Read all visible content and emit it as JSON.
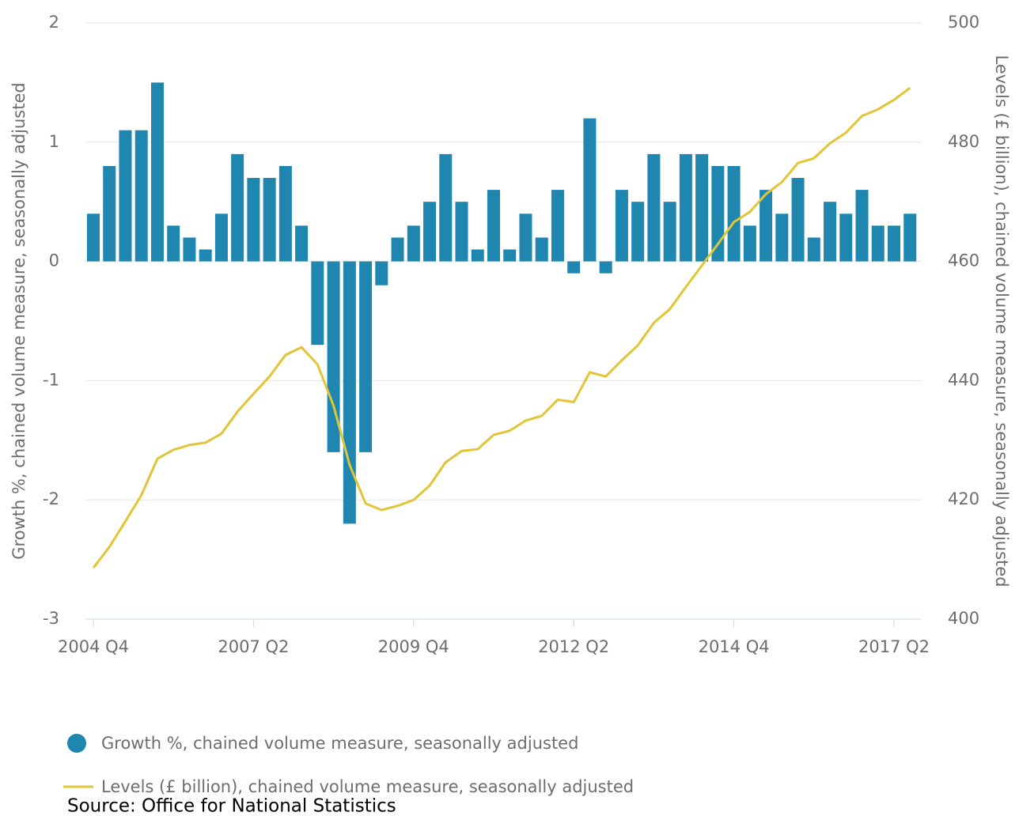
{
  "chart_data": {
    "type": "bar_line",
    "categories": [
      "2004 Q4",
      null,
      null,
      null,
      null,
      null,
      null,
      null,
      null,
      null,
      "2007 Q2",
      null,
      null,
      null,
      null,
      null,
      null,
      null,
      null,
      null,
      "2009 Q4",
      null,
      null,
      null,
      null,
      null,
      null,
      null,
      null,
      null,
      "2012 Q2",
      null,
      null,
      null,
      null,
      null,
      null,
      null,
      null,
      null,
      "2014 Q4",
      null,
      null,
      null,
      null,
      null,
      null,
      null,
      null,
      null,
      "2017 Q2",
      null
    ],
    "series": [
      {
        "name": "Growth %, chained volume measure, seasonally adjusted",
        "color": "#1f86b0",
        "type": "bar",
        "values": [
          0.4,
          0.8,
          1.1,
          1.1,
          1.5,
          0.3,
          0.2,
          0.1,
          0.4,
          0.9,
          0.7,
          0.7,
          0.8,
          0.3,
          -0.7,
          -1.6,
          -2.2,
          -1.6,
          -0.2,
          0.2,
          0.3,
          0.5,
          0.9,
          0.5,
          0.1,
          0.6,
          0.1,
          0.4,
          0.2,
          0.6,
          -0.1,
          1.2,
          -0.1,
          0.6,
          0.5,
          0.9,
          0.5,
          0.9,
          0.9,
          0.8,
          0.8,
          0.3,
          0.6,
          0.4,
          0.7,
          0.2,
          0.5,
          0.4,
          0.6,
          0.3,
          0.3,
          0.4
        ]
      },
      {
        "name": "Levels (£ billion), chained volume measure, seasonally adjusted",
        "color": "#e2c536",
        "type": "line",
        "axis": "y2",
        "values": [
          408.6,
          412.1,
          416.4,
          420.8,
          426.9,
          428.4,
          429.2,
          429.6,
          431.1,
          434.8,
          437.8,
          440.7,
          444.3,
          445.6,
          442.7,
          435.8,
          425.9,
          419.4,
          418.3,
          419.0,
          420.0,
          422.4,
          426.3,
          428.2,
          428.5,
          430.9,
          431.6,
          433.3,
          434.1,
          436.8,
          436.4,
          441.4,
          440.7,
          443.4,
          445.9,
          449.7,
          452.0,
          455.7,
          459.3,
          462.9,
          466.6,
          468.3,
          471.3,
          473.3,
          476.5,
          477.3,
          479.8,
          481.6,
          484.4,
          485.5,
          487.1,
          489.1
        ]
      }
    ],
    "ylabel": "Growth %, chained volume measure, seasonally adjusted",
    "y2label": "Levels (£ billion), chained volume measure, seasonally adjusted",
    "ylim": [
      -3,
      2
    ],
    "yticks": [
      -3,
      -2,
      -1,
      0,
      1,
      2
    ],
    "y2lim": [
      400,
      500
    ],
    "y2ticks": [
      400,
      420,
      440,
      460,
      480,
      500
    ],
    "grid": true,
    "source": "Source: Office for National Statistics"
  }
}
